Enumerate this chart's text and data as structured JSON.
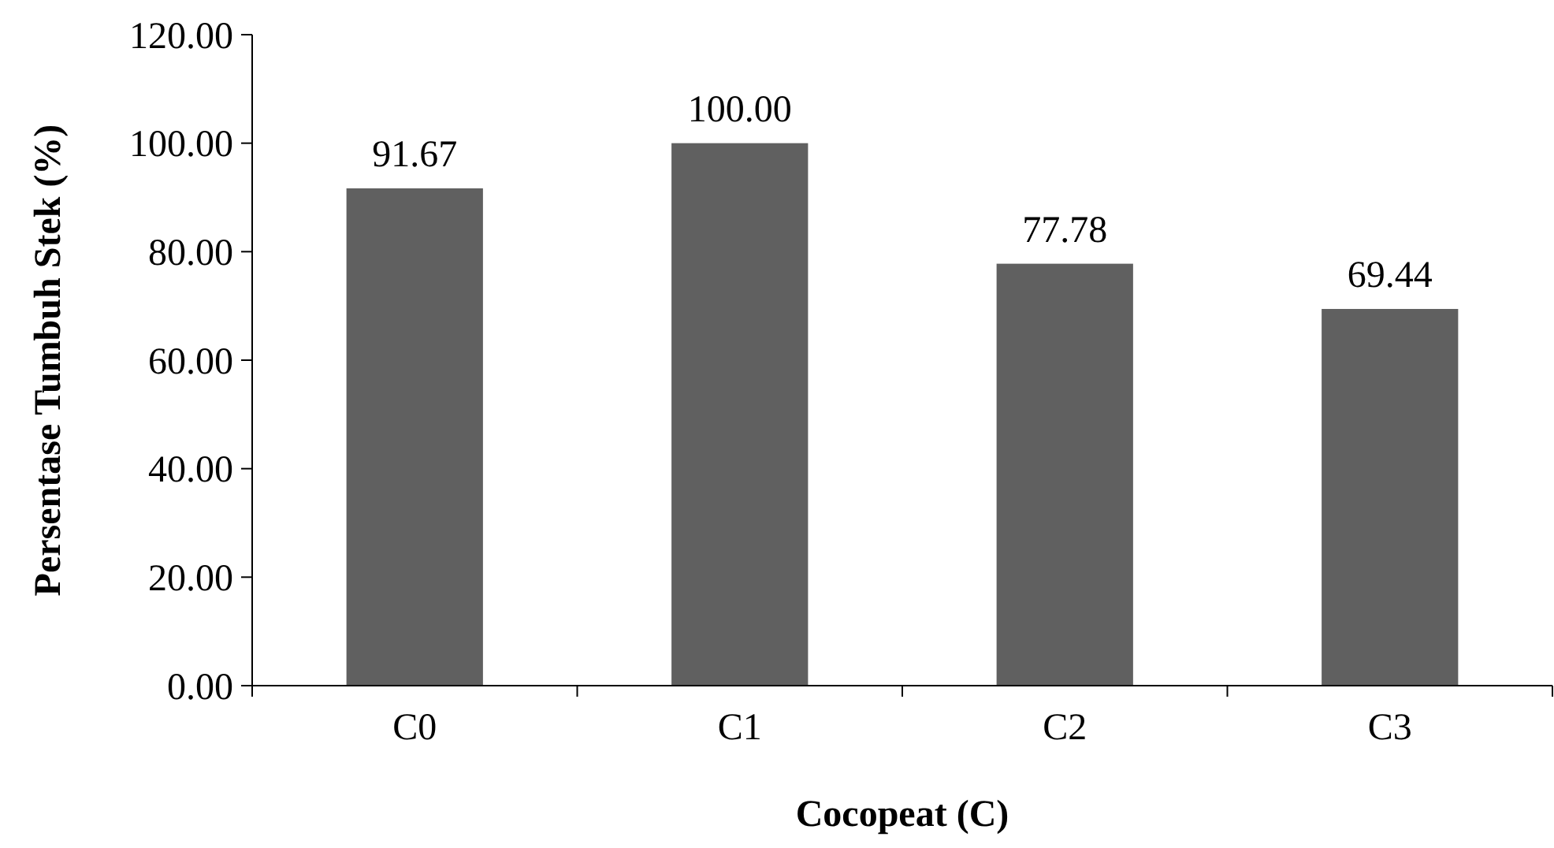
{
  "chart_data": {
    "type": "bar",
    "xlabel": "Cocopeat (C)",
    "ylabel": "Persentase Tumbuh Stek (%)",
    "categories": [
      "C0",
      "C1",
      "C2",
      "C3"
    ],
    "values": [
      91.67,
      100.0,
      77.78,
      69.44
    ],
    "value_labels": [
      "91.67",
      "100.00",
      "77.78",
      "69.44"
    ],
    "color": "#606060",
    "ylim": [
      0,
      120
    ],
    "yticks": [
      {
        "value": 0,
        "label": "0.00"
      },
      {
        "value": 20,
        "label": "20.00"
      },
      {
        "value": 40,
        "label": "40.00"
      },
      {
        "value": 60,
        "label": "60.00"
      },
      {
        "value": 80,
        "label": "80.00"
      },
      {
        "value": 100,
        "label": "100.00"
      },
      {
        "value": 120,
        "label": "120.00"
      }
    ],
    "grid": false
  }
}
